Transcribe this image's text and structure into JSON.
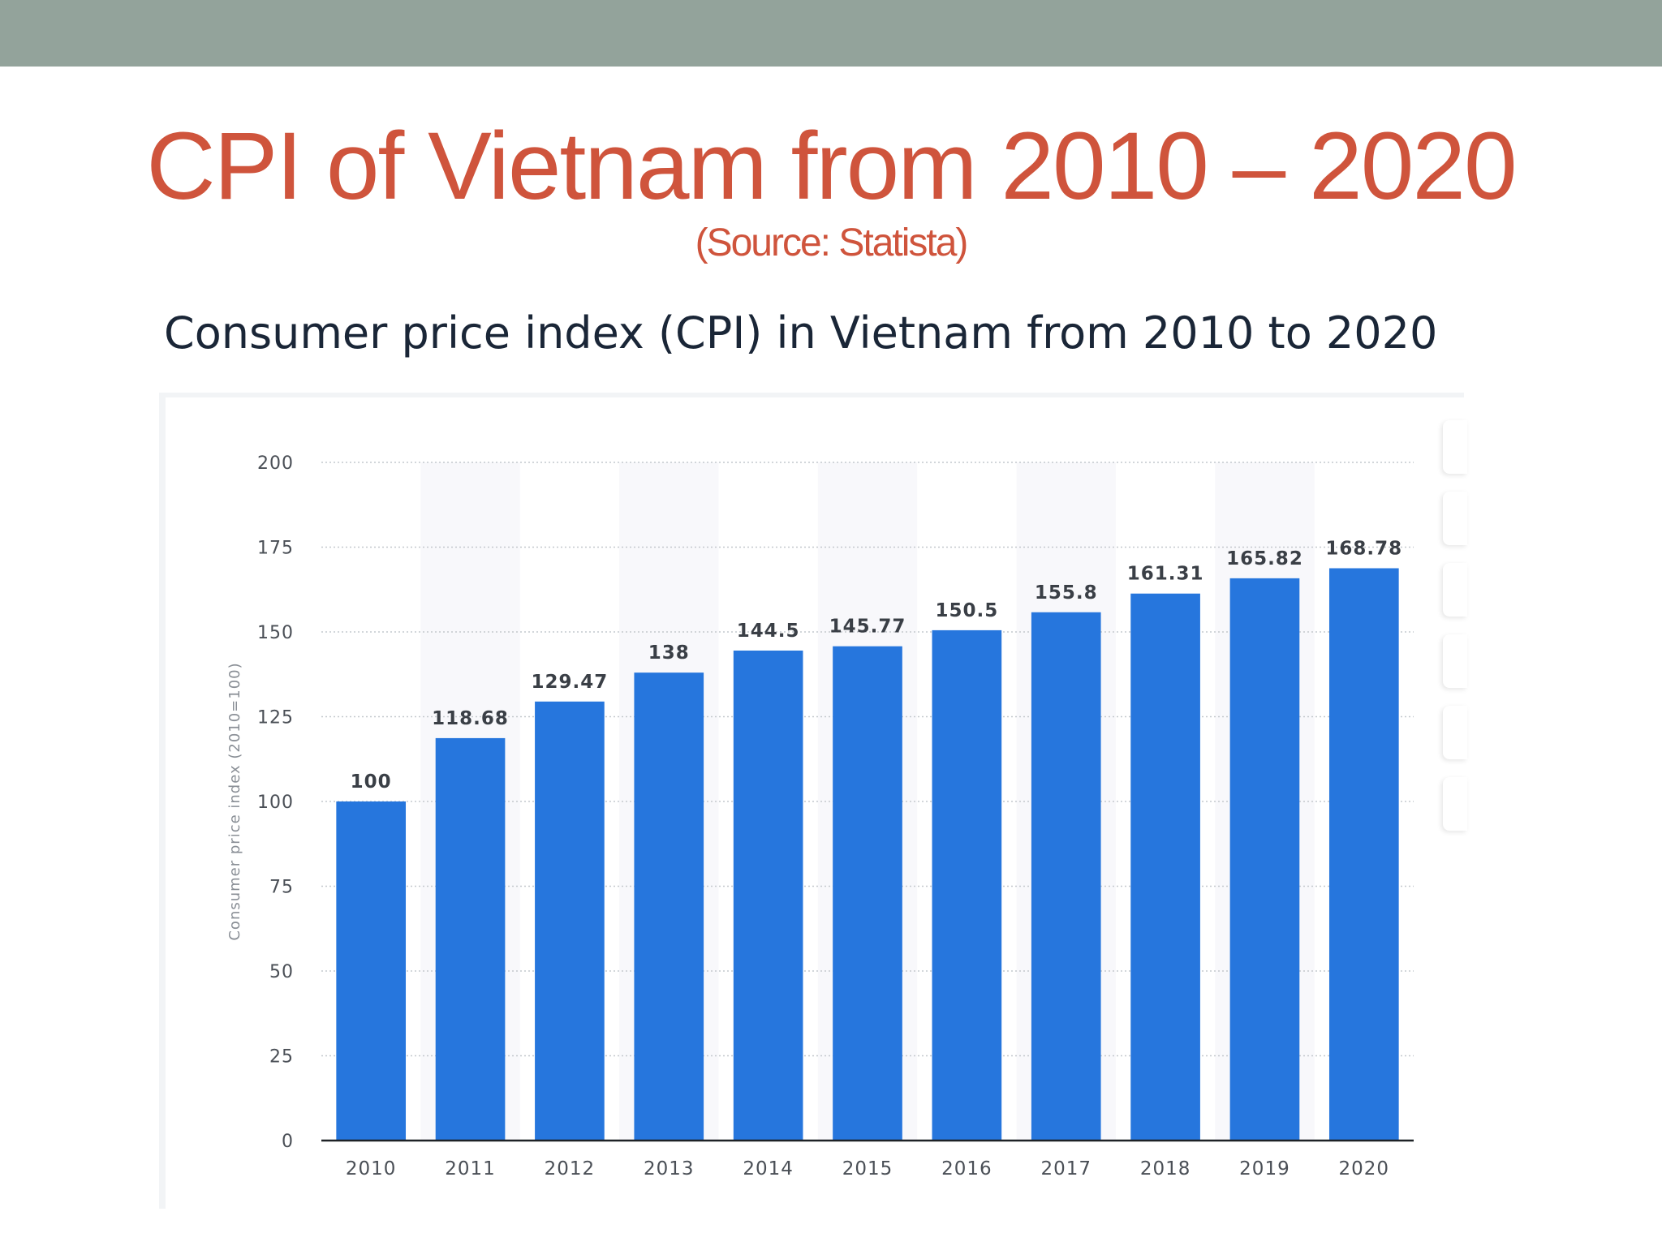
{
  "slide": {
    "title": "CPI of Vietnam from 2010 – 2020",
    "subtitle": "(Source: Statista)"
  },
  "colors": {
    "top_bar": "#93a39b",
    "title": "#cf543c",
    "bar": "#2676dd",
    "heading": "#1a2637"
  },
  "chart_data": {
    "type": "bar",
    "title": "Consumer price index (CPI) in Vietnam from 2010 to 2020",
    "ylabel": "Consumer price index (2010=100)",
    "xlabel": "",
    "categories": [
      "2010",
      "2011",
      "2012",
      "2013",
      "2014",
      "2015",
      "2016",
      "2017",
      "2018",
      "2019",
      "2020"
    ],
    "values": [
      100,
      118.68,
      129.47,
      138,
      144.5,
      145.77,
      150.5,
      155.8,
      161.31,
      165.82,
      168.78
    ],
    "value_labels": [
      "100",
      "118.68",
      "129.47",
      "138",
      "144.5",
      "145.77",
      "150.5",
      "155.8",
      "161.31",
      "165.82",
      "168.78"
    ],
    "ylim": [
      0,
      200
    ],
    "yticks": [
      0,
      25,
      50,
      75,
      100,
      125,
      150,
      175,
      200
    ],
    "grid": true,
    "legend": "none"
  }
}
